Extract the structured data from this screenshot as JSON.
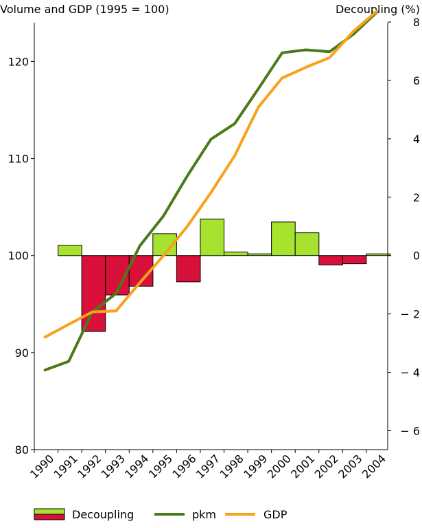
{
  "chart_data": {
    "type": "bar+line",
    "left_axis_title": "Volume and GDP (1995 = 100)",
    "right_axis_title": "Decoupling (%)",
    "left_ylim": [
      80,
      124
    ],
    "left_ticks": [
      "80",
      "90",
      "100",
      "110",
      "120"
    ],
    "right_ylim": [
      -7,
      8
    ],
    "right_ticks": [
      "− 6",
      "− 4",
      "− 2",
      "0",
      "2",
      "4",
      "6",
      "8"
    ],
    "x_ticks": [
      "1990",
      "1991",
      "1992",
      "1993",
      "1994",
      "1995",
      "1996",
      "1997",
      "1998",
      "1999",
      "2000",
      "2001",
      "2002",
      "2003",
      "2004"
    ],
    "bar_series": {
      "name": "Decoupling",
      "positive_color": "#a6e22e",
      "negative_color": "#d9103a",
      "categories": [
        "1991",
        "1992",
        "1993",
        "1994",
        "1995",
        "1996",
        "1997",
        "1998",
        "1999",
        "2000",
        "2001",
        "2002",
        "2003",
        "2004"
      ],
      "values": [
        0.35,
        -2.6,
        -1.35,
        -1.05,
        0.75,
        -0.9,
        1.25,
        0.12,
        0.06,
        1.15,
        0.78,
        -0.32,
        -0.28,
        0.06
      ]
    },
    "line_series": [
      {
        "name": "pkm",
        "color": "#4a7a1a",
        "x": [
          "1990",
          "1991",
          "1992",
          "1993",
          "1994",
          "1995",
          "1996",
          "1997",
          "1998",
          "1999",
          "2000",
          "2001",
          "2002",
          "2003",
          "2004"
        ],
        "values": [
          88.2,
          89.1,
          94.2,
          96.1,
          101.0,
          104.1,
          108.2,
          112.0,
          113.6,
          117.2,
          120.9,
          121.2,
          121.0,
          122.8,
          125.1
        ]
      },
      {
        "name": "GDP",
        "color": "#f7a21b",
        "x": [
          "1990",
          "1991",
          "1992",
          "1993",
          "1994",
          "1995",
          "1996",
          "1997",
          "1998",
          "1999",
          "2000",
          "2001",
          "2002",
          "2003",
          "2004"
        ],
        "values": [
          91.6,
          92.9,
          94.2,
          94.3,
          97.2,
          100.0,
          103.0,
          106.5,
          110.3,
          115.3,
          118.3,
          119.4,
          120.4,
          123.1,
          125.2
        ]
      }
    ],
    "legend": {
      "placement": "bottom",
      "entries": [
        "Decoupling",
        "pkm",
        "GDP"
      ]
    }
  }
}
